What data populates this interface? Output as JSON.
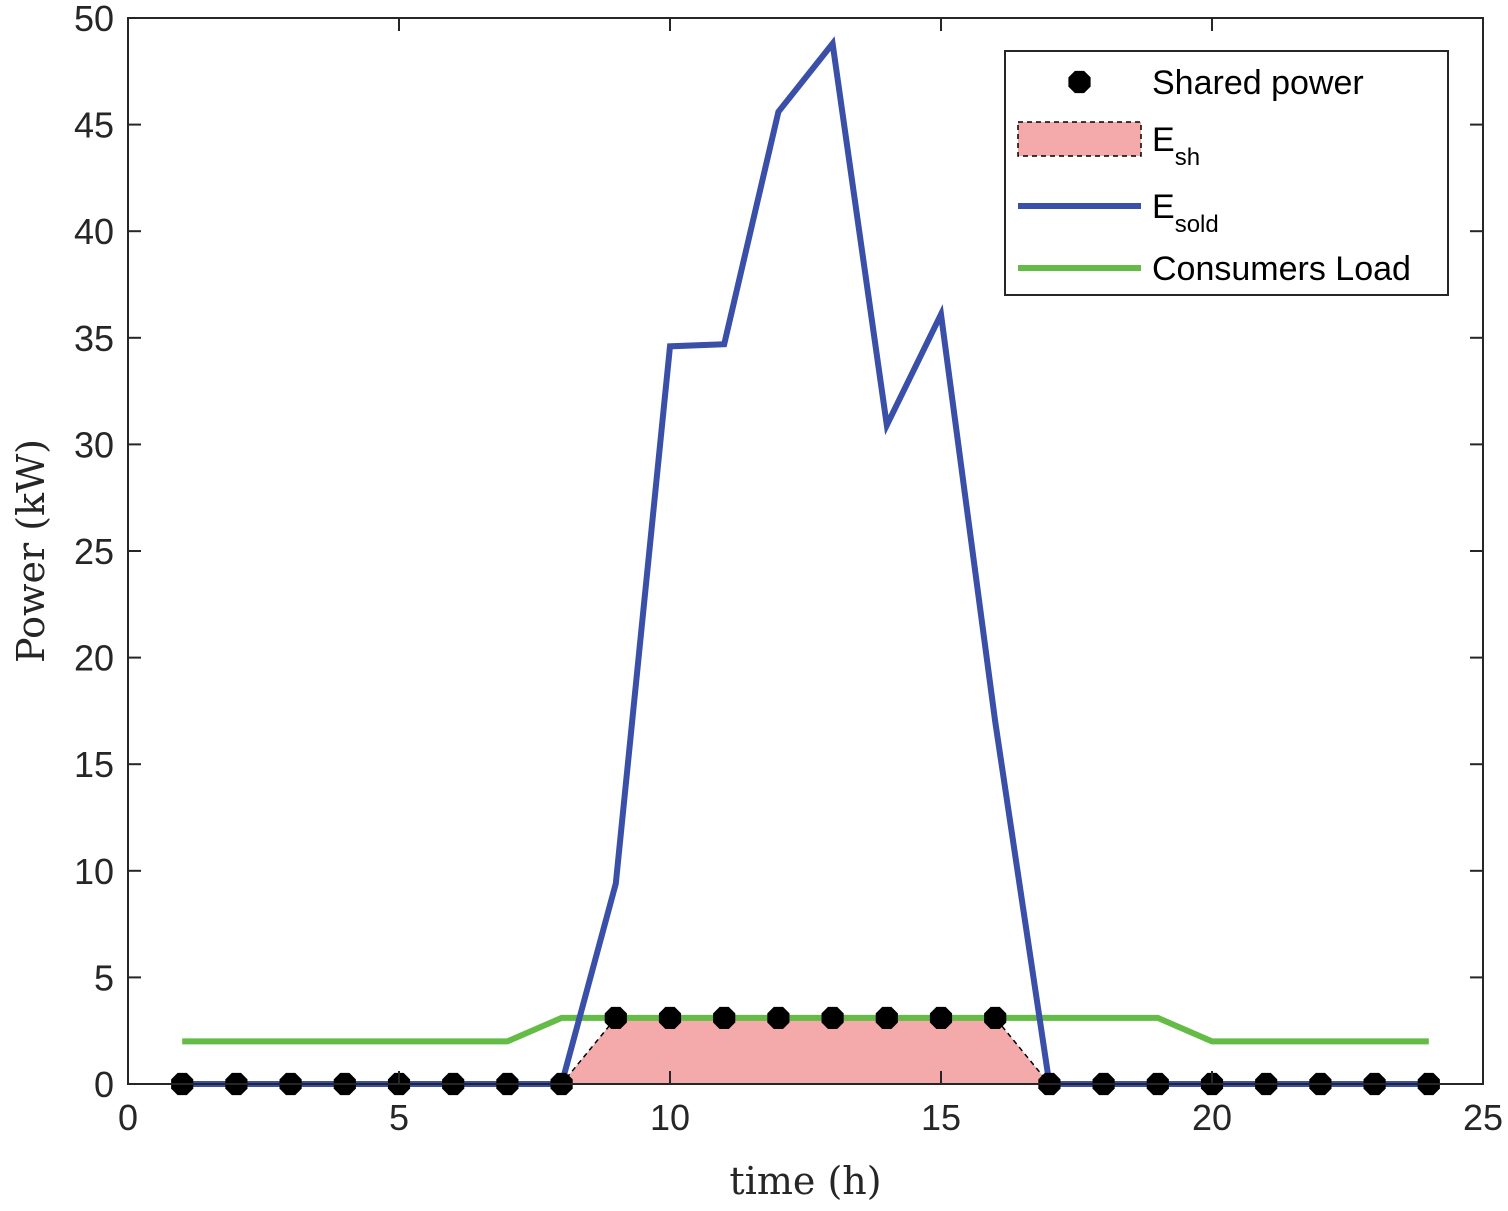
{
  "chart_data": {
    "type": "line",
    "title": "",
    "xlabel": "time (h)",
    "ylabel": "Power (kW)",
    "xlim": [
      0,
      25
    ],
    "ylim": [
      0,
      50
    ],
    "xticks": [
      0,
      5,
      10,
      15,
      20,
      25
    ],
    "yticks": [
      0,
      5,
      10,
      15,
      20,
      25,
      30,
      35,
      40,
      45,
      50
    ],
    "xtick_labels": [
      "0",
      "5",
      "10",
      "15",
      "20",
      "25"
    ],
    "ytick_labels": [
      "0",
      "5",
      "10",
      "15",
      "20",
      "25",
      "30",
      "35",
      "40",
      "45",
      "50"
    ],
    "grid": false,
    "legend_position": "top-right",
    "x": [
      1,
      2,
      3,
      4,
      5,
      6,
      7,
      8,
      9,
      10,
      11,
      12,
      13,
      14,
      15,
      16,
      17,
      18,
      19,
      20,
      21,
      22,
      23,
      24
    ],
    "series": [
      {
        "name": "Shared power",
        "kind": "markers",
        "color": "#000000",
        "values": [
          0,
          0,
          0,
          0,
          0,
          0,
          0,
          0,
          3.1,
          3.1,
          3.1,
          3.1,
          3.1,
          3.1,
          3.1,
          3.1,
          0,
          0,
          0,
          0,
          0,
          0,
          0,
          0
        ]
      },
      {
        "name": "E",
        "name_subscript": "sh",
        "kind": "area",
        "color": "#f4a9ab",
        "values": [
          0,
          0,
          0,
          0,
          0,
          0,
          0,
          0,
          3.1,
          3.1,
          3.1,
          3.1,
          3.1,
          3.1,
          3.1,
          3.1,
          0,
          0,
          0,
          0,
          0,
          0,
          0,
          0
        ]
      },
      {
        "name": "E",
        "name_subscript": "sold",
        "kind": "line",
        "color": "#3a4fa8",
        "values": [
          0,
          0,
          0,
          0,
          0,
          0,
          0,
          0,
          9.4,
          34.6,
          34.7,
          45.6,
          48.8,
          30.9,
          36.1,
          17.0,
          0,
          0,
          0,
          0,
          0,
          0,
          0,
          0
        ]
      },
      {
        "name": "Consumers Load",
        "kind": "line",
        "color": "#64bb46",
        "values": [
          2.0,
          2.0,
          2.0,
          2.0,
          2.0,
          2.0,
          2.0,
          3.1,
          3.1,
          3.1,
          3.1,
          3.1,
          3.1,
          3.1,
          3.1,
          3.1,
          3.1,
          3.1,
          3.1,
          2.0,
          2.0,
          2.0,
          2.0,
          2.0
        ]
      }
    ]
  }
}
